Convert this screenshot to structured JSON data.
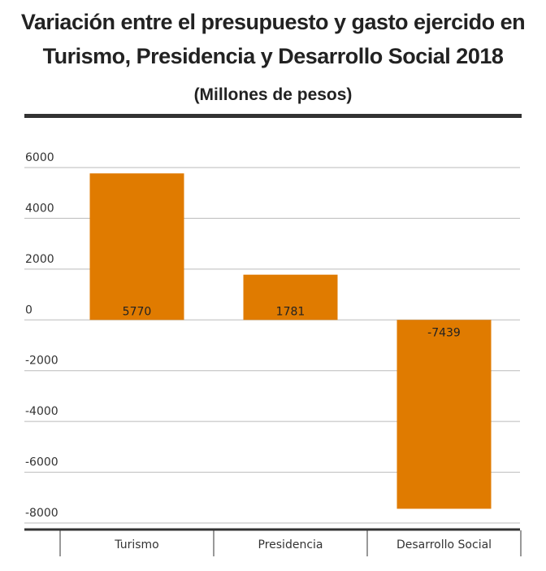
{
  "chart_data": {
    "type": "bar",
    "title": "Variación entre el presupuesto y gasto ejercido en Turismo, Presidencia y Desarrollo Social 2018",
    "subtitle": "(Millones de pesos)",
    "categories": [
      "Turismo",
      "Presidencia",
      "Desarrollo Social"
    ],
    "values": [
      5770,
      1781,
      -7439
    ],
    "value_labels": [
      "5770",
      "1781",
      "-7439"
    ],
    "yticks": [
      6000,
      4000,
      2000,
      0,
      -2000,
      -4000,
      -6000,
      -8000
    ],
    "ytick_labels": [
      "6000",
      "4000",
      "2000",
      "0",
      "-2000",
      "-4000",
      "-6000",
      "-8000"
    ],
    "ylim": [
      -8000,
      6000
    ],
    "xlabel": "",
    "ylabel": "",
    "grid": true,
    "bar_color": "#e07b00"
  }
}
